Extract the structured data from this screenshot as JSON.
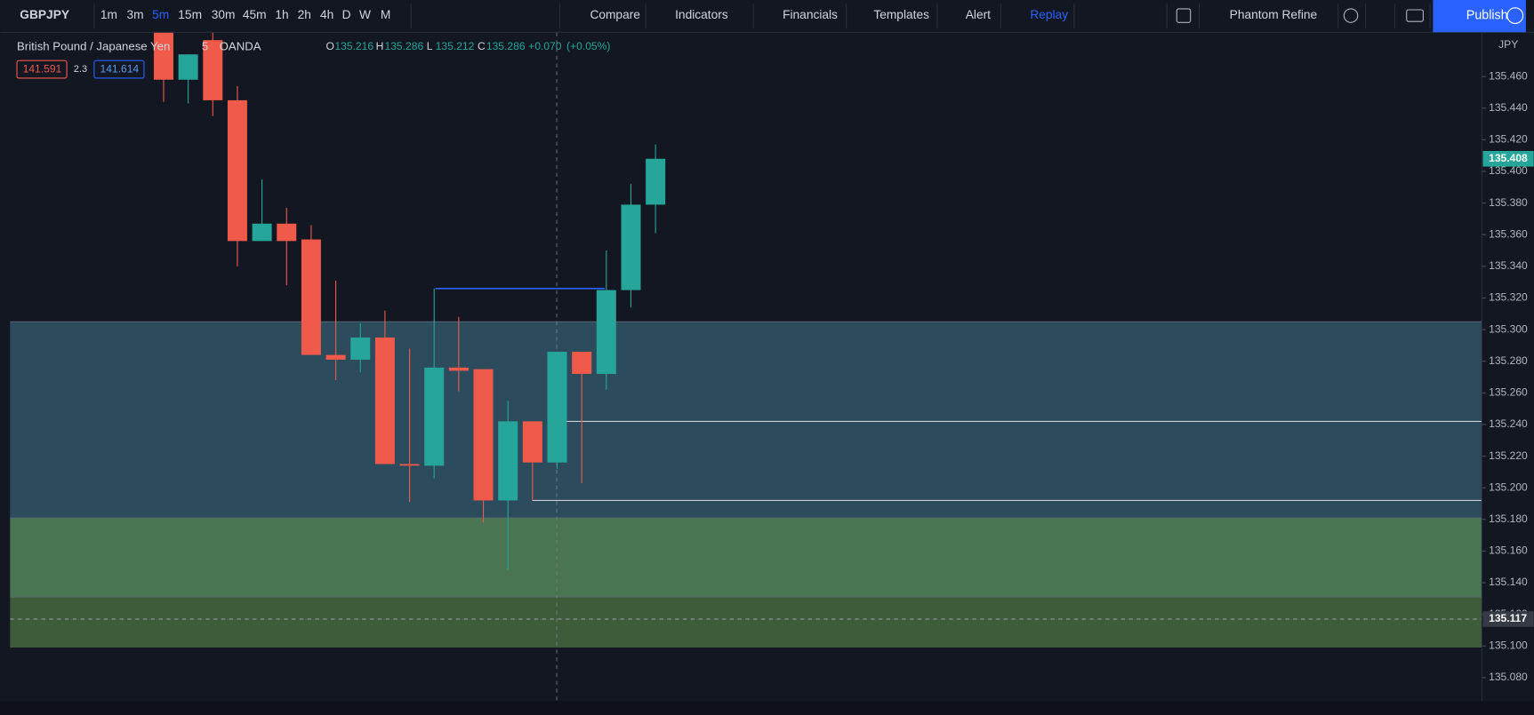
{
  "toolbar": {
    "symbol": "GBPJPY",
    "intervals": [
      "1m",
      "3m",
      "5m",
      "15m",
      "30m",
      "45m",
      "1h",
      "2h",
      "4h",
      "D",
      "W",
      "M"
    ],
    "buttons": [
      "Compare",
      "Indicators",
      "Financials",
      "Templates",
      "Alert",
      "Replay"
    ],
    "layout": "Phantom Refine",
    "publish": "Publish"
  },
  "legend": {
    "name": "British Pound / Japanese Yen",
    "interval": "5",
    "exchange": "OANDA",
    "o_label": "O",
    "open": 135.216,
    "h_label": "H",
    "high": 135.286,
    "l_label": "L",
    "low": 135.212,
    "c_label": "C",
    "close": 135.286,
    "change": "+0.070",
    "change_pct": "(+0.05%)"
  },
  "order": {
    "sell": "141.591",
    "spread": "2.3",
    "buy": "141.614"
  },
  "chart_data": {
    "type": "candlestick",
    "currency": "JPY",
    "ylim": [
      135.065,
      135.488
    ],
    "yticks": [
      {
        "value": 135.08,
        "label": "135.080"
      },
      {
        "value": 135.1,
        "label": "135.100"
      },
      {
        "value": 135.12,
        "label": "135.120"
      },
      {
        "value": 135.14,
        "label": "135.140"
      },
      {
        "value": 135.16,
        "label": "135.160"
      },
      {
        "value": 135.18,
        "label": "135.180"
      },
      {
        "value": 135.2,
        "label": "135.200"
      },
      {
        "value": 135.22,
        "label": "135.220"
      },
      {
        "value": 135.24,
        "label": "135.240"
      },
      {
        "value": 135.26,
        "label": "135.260"
      },
      {
        "value": 135.28,
        "label": "135.280"
      },
      {
        "value": 135.3,
        "label": "135.300"
      },
      {
        "value": 135.32,
        "label": "135.320"
      },
      {
        "value": 135.34,
        "label": "135.340"
      },
      {
        "value": 135.36,
        "label": "135.360"
      },
      {
        "value": 135.38,
        "label": "135.380"
      },
      {
        "value": 135.4,
        "label": "135.400"
      },
      {
        "value": 135.42,
        "label": "135.420"
      },
      {
        "value": 135.44,
        "label": "135.440"
      },
      {
        "value": 135.46,
        "label": "135.460"
      }
    ],
    "open": [
      135.49,
      135.458,
      135.483,
      135.445,
      135.356,
      135.367,
      135.357,
      135.284,
      135.281,
      135.295,
      135.215,
      135.214,
      135.276,
      135.275,
      135.192,
      135.242,
      135.216,
      135.286,
      135.272,
      135.325,
      135.379
    ],
    "high": [
      135.49,
      135.474,
      135.49,
      135.454,
      135.395,
      135.377,
      135.366,
      135.331,
      135.304,
      135.312,
      135.288,
      135.326,
      135.308,
      135.275,
      135.255,
      135.242,
      135.286,
      135.286,
      135.35,
      135.392,
      135.417
    ],
    "low": [
      135.444,
      135.443,
      135.435,
      135.34,
      135.356,
      135.328,
      135.284,
      135.268,
      135.273,
      135.215,
      135.191,
      135.206,
      135.261,
      135.178,
      135.148,
      135.192,
      135.212,
      135.203,
      135.262,
      135.314,
      135.361
    ],
    "close": [
      135.458,
      135.474,
      135.445,
      135.356,
      135.367,
      135.356,
      135.284,
      135.281,
      135.295,
      135.215,
      135.214,
      135.276,
      135.274,
      135.192,
      135.242,
      135.216,
      135.286,
      135.272,
      135.325,
      135.379,
      135.408
    ],
    "up_color": "#26a69a",
    "down_color": "#f05a4a",
    "zones": [
      {
        "from": 135.305,
        "to": 135.181,
        "color": "#2c4c5e"
      },
      {
        "from": 135.181,
        "to": 135.131,
        "color": "#4a7552"
      },
      {
        "from": 135.131,
        "to": 135.099,
        "color": "#3d5c3a"
      }
    ],
    "levels": [
      135.242,
      135.192,
      135.326
    ],
    "last_price": 135.408,
    "crosshair_price": 135.117
  }
}
